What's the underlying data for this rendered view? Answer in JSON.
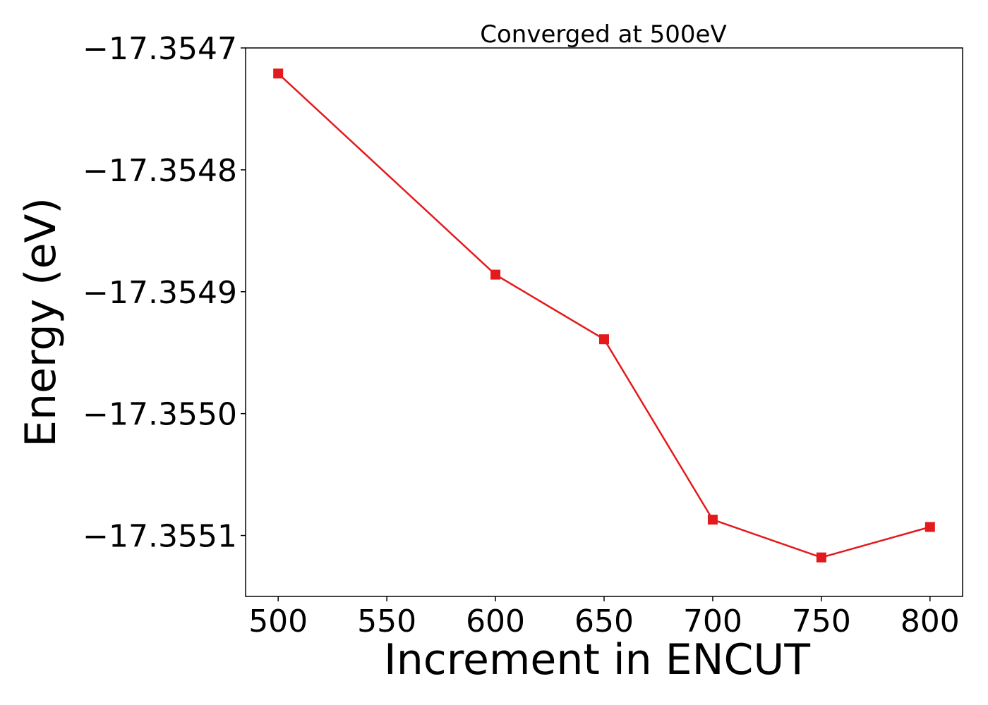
{
  "chart_data": {
    "type": "line",
    "title": "Converged at 500eV",
    "xlabel": "Increment in ENCUT",
    "ylabel": "Energy (eV)",
    "x": [
      500,
      600,
      650,
      700,
      750,
      800
    ],
    "series": [
      {
        "values": [
          -17.354721,
          -17.354886,
          -17.354939,
          -17.355087,
          -17.355118,
          -17.355093
        ],
        "color": "#e31a1c",
        "marker": "square"
      }
    ],
    "xlim": [
      485,
      815
    ],
    "ylim": [
      -17.35515,
      -17.3547
    ],
    "xticks": [
      500,
      550,
      600,
      650,
      700,
      750,
      800
    ],
    "xtick_labels": [
      "500",
      "550",
      "600",
      "650",
      "700",
      "750",
      "800"
    ],
    "yticks": [
      -17.3547,
      -17.3548,
      -17.3549,
      -17.355,
      -17.3551
    ],
    "ytick_labels": [
      "−17.3547",
      "−17.3548",
      "−17.3549",
      "−17.3550",
      "−17.3551"
    ],
    "grid": false,
    "legend": "none"
  }
}
